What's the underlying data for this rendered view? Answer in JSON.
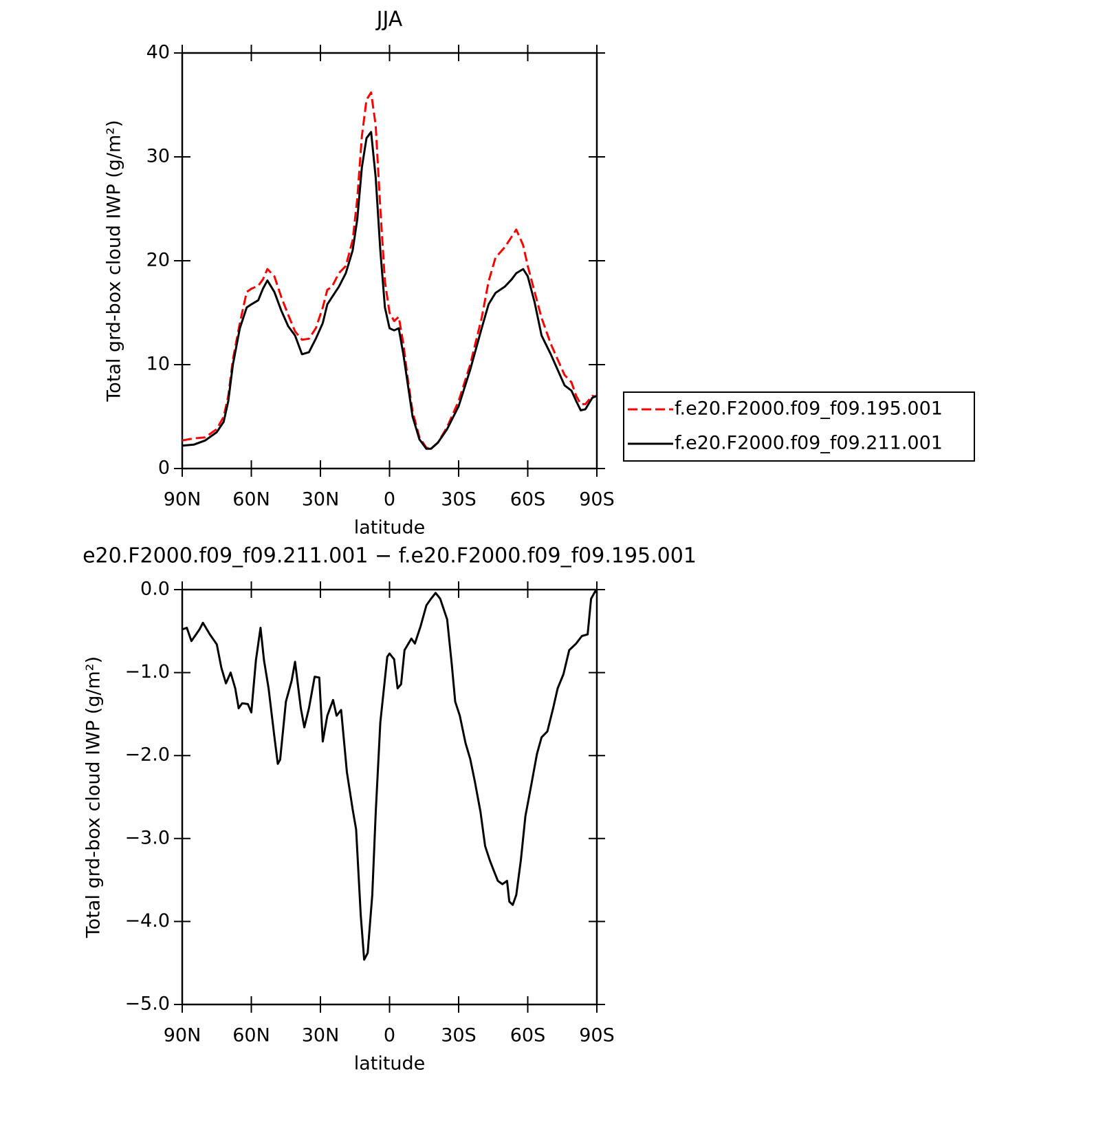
{
  "chart_data": [
    {
      "type": "line",
      "title": "JJA",
      "xlabel": "latitude",
      "ylabel": "Total grd-box cloud IWP (g/m²)",
      "xlim": [
        90,
        -90
      ],
      "xticks": [
        {
          "value": 90,
          "label": "90N"
        },
        {
          "value": 60,
          "label": "60N"
        },
        {
          "value": 30,
          "label": "30N"
        },
        0,
        {
          "value": -30,
          "label": "30S"
        },
        {
          "value": -60,
          "label": "60S"
        },
        {
          "value": -90,
          "label": "90S"
        }
      ],
      "ylim": [
        0,
        40
      ],
      "yticks": [
        0,
        10,
        20,
        30,
        40
      ],
      "legend": "outside right",
      "x": [
        90,
        85,
        80,
        75,
        72,
        70,
        68,
        65,
        62,
        60,
        57,
        55,
        53,
        50,
        47,
        44,
        41,
        38,
        35,
        32,
        29,
        27,
        25,
        22,
        19,
        16,
        14,
        12,
        10,
        8,
        6,
        4,
        2,
        0,
        -2,
        -4,
        -6,
        -8,
        -10,
        -13,
        -16,
        -18,
        -21,
        -25,
        -30,
        -35,
        -40,
        -43,
        -46,
        -50,
        -53,
        -55,
        -58,
        -60,
        -63,
        -66,
        -70,
        -73,
        -76,
        -79,
        -81,
        -83,
        -85,
        -88,
        -90
      ],
      "series": [
        {
          "name": "f.e20.F2000.f09_f09.195.001",
          "color": "#ff0000",
          "dash": "dashed",
          "values": [
            2.7,
            2.9,
            3.0,
            3.8,
            5,
            7,
            10.5,
            14,
            17,
            17.3,
            17.6,
            18.2,
            19.2,
            18.5,
            16.5,
            14.8,
            13.2,
            12.4,
            12.5,
            13.5,
            15.5,
            17.2,
            17.5,
            18.8,
            19.5,
            22,
            26,
            32,
            35.5,
            36.2,
            33,
            25,
            18,
            15,
            14.2,
            14.6,
            12,
            8.5,
            5.5,
            3,
            2,
            1.9,
            2.5,
            4,
            6.5,
            10,
            14.5,
            18,
            20.3,
            21.3,
            22.3,
            23,
            21.5,
            19.5,
            17,
            14.5,
            12,
            10.5,
            9,
            8.3,
            7,
            6.2,
            6.2,
            7,
            6.9
          ]
        },
        {
          "name": "f.e20.F2000.f09_f09.211.001",
          "color": "#000000",
          "dash": "solid",
          "values": [
            2.2,
            2.3,
            2.7,
            3.5,
            4.5,
            6.5,
            10,
            13.5,
            15.5,
            15.8,
            16.2,
            17.3,
            18.1,
            17,
            15.2,
            13.7,
            12.8,
            11,
            11.2,
            12.5,
            14,
            15.8,
            16.5,
            17.5,
            18.8,
            21,
            24,
            29,
            31.8,
            32.4,
            28,
            21,
            15.5,
            13.5,
            13.3,
            13.5,
            11,
            8,
            5,
            2.8,
            1.9,
            1.9,
            2.5,
            3.8,
            6,
            9.5,
            13.5,
            15.8,
            16.9,
            17.5,
            18.2,
            18.8,
            19.2,
            18.5,
            16,
            12.8,
            11,
            9.5,
            8,
            7.5,
            6.5,
            5.6,
            5.7,
            6.8,
            7
          ]
        }
      ]
    },
    {
      "type": "line",
      "title": "e20.F2000.f09_f09.211.001 − f.e20.F2000.f09_f09.195.001",
      "xlabel": "latitude",
      "ylabel": "Total grd-box cloud IWP (g/m²)",
      "xlim": [
        90,
        -90
      ],
      "xticks": [
        {
          "value": 90,
          "label": "90N"
        },
        {
          "value": 60,
          "label": "60N"
        },
        {
          "value": 30,
          "label": "30N"
        },
        0,
        {
          "value": -30,
          "label": "30S"
        },
        {
          "value": -60,
          "label": "60S"
        },
        {
          "value": -90,
          "label": "90S"
        }
      ],
      "ylim": [
        -5,
        0
      ],
      "yticks": [
        {
          "value": 0,
          "label": "0.0"
        },
        {
          "value": -1,
          "label": "−1.0"
        },
        {
          "value": -2,
          "label": "−2.0"
        },
        {
          "value": -3,
          "label": "−3.0"
        },
        {
          "value": -4,
          "label": "−4.0"
        },
        {
          "value": -5,
          "label": "−5.0"
        }
      ],
      "color": "#000000",
      "x": [
        90,
        88,
        86,
        82.5,
        81,
        78,
        75,
        73,
        71,
        69,
        67,
        65.5,
        64,
        61.5,
        60,
        58,
        56,
        54.5,
        52.5,
        50,
        48.5,
        47.5,
        45,
        42.5,
        41,
        38.5,
        37,
        35,
        32.5,
        30.5,
        29,
        27,
        24.5,
        23,
        21,
        18.5,
        16,
        14.5,
        12.5,
        11,
        9.5,
        7.5,
        6,
        4,
        1,
        0,
        -2,
        -3.5,
        -5,
        -6.5,
        -9.5,
        -11,
        -13.5,
        -16,
        -18,
        -20,
        -22,
        -25,
        -27,
        -28.5,
        -30.5,
        -33,
        -35,
        -37,
        -39.5,
        -41.5,
        -43.5,
        -45,
        -47,
        -49,
        -51,
        -52,
        -53.5,
        -55,
        -57,
        -59,
        -61.5,
        -64,
        -66,
        -68.5,
        -71,
        -73,
        -75.5,
        -78,
        -81,
        -83.5,
        -86,
        -87.5,
        -89.5,
        -90
      ],
      "values": [
        -0.48,
        -0.46,
        -0.62,
        -0.48,
        -0.4,
        -0.54,
        -0.66,
        -0.94,
        -1.13,
        -1.0,
        -1.19,
        -1.43,
        -1.37,
        -1.38,
        -1.48,
        -0.85,
        -0.46,
        -0.85,
        -1.19,
        -1.77,
        -2.1,
        -2.05,
        -1.35,
        -1.1,
        -0.87,
        -1.43,
        -1.66,
        -1.43,
        -1.05,
        -1.06,
        -1.83,
        -1.52,
        -1.33,
        -1.52,
        -1.45,
        -2.2,
        -2.65,
        -2.89,
        -3.92,
        -4.46,
        -4.38,
        -3.68,
        -2.69,
        -1.6,
        -0.81,
        -0.77,
        -0.84,
        -1.19,
        -1.14,
        -0.73,
        -0.59,
        -0.65,
        -0.44,
        -0.19,
        -0.11,
        -0.04,
        -0.11,
        -0.36,
        -0.9,
        -1.35,
        -1.52,
        -1.85,
        -2.04,
        -2.31,
        -2.68,
        -3.09,
        -3.26,
        -3.37,
        -3.51,
        -3.55,
        -3.51,
        -3.76,
        -3.8,
        -3.68,
        -3.26,
        -2.73,
        -2.36,
        -1.98,
        -1.78,
        -1.71,
        -1.43,
        -1.19,
        -1.02,
        -0.73,
        -0.65,
        -0.56,
        -0.54,
        -0.11,
        -0.01,
        -0.04
      ]
    }
  ]
}
